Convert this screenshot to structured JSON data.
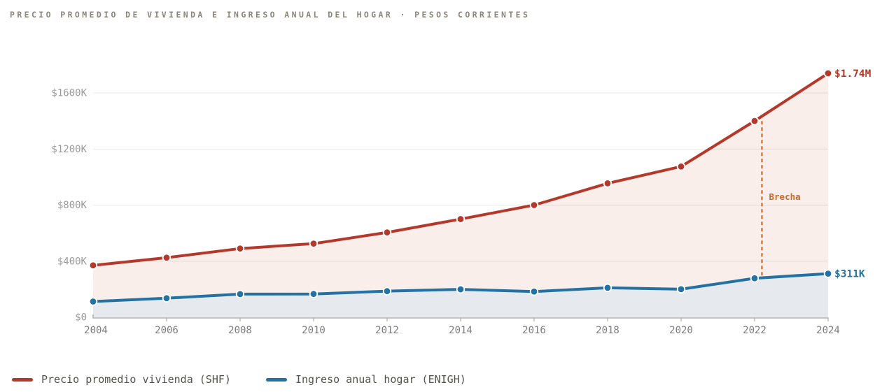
{
  "title": "PRECIO PROMEDIO DE VIVIENDA E INGRESO ANUAL DEL HOGAR · PESOS CORRIENTES",
  "colors": {
    "shf_red": "#b5392b",
    "enigh_blue": "#2471a4",
    "shf_area_fill": "#f9eeea",
    "enigh_area_fill": "#e6e9ed",
    "annotation_orange": "#cb6a2f",
    "grid": "rgba(100,85,75,0.14)",
    "axis": "#b3afaa",
    "x_tick_text": "#7d7d7d",
    "y_tick_text": "#9b9b9b",
    "title_text": "#8b8579",
    "legend_text": "#55524c"
  },
  "chart_data": {
    "type": "line",
    "x": [
      2004,
      2006,
      2008,
      2010,
      2012,
      2014,
      2016,
      2018,
      2020,
      2022,
      2024
    ],
    "x_tick_labels": [
      "2004",
      "2006",
      "2008",
      "2010",
      "2012",
      "2014",
      "2016",
      "2018",
      "2020",
      "2022",
      "2024"
    ],
    "series": [
      {
        "name": "Precio promedio vivienda (SHF)",
        "color": "#b5392b",
        "area_fill": "#f9eeea",
        "values": [
          370000,
          425000,
          490000,
          525000,
          605000,
          700000,
          800000,
          955000,
          1075000,
          1400000,
          1740000
        ],
        "end_label": "$1.74M"
      },
      {
        "name": "Ingreso anual hogar (ENIGH)",
        "color": "#2471a4",
        "area_fill": "#e6e9ed",
        "values": [
          112000,
          136000,
          165000,
          166000,
          186000,
          199000,
          183000,
          210000,
          200000,
          278000,
          311000
        ],
        "end_label": "$311K"
      }
    ],
    "y_ticks": [
      {
        "value": 0,
        "label": "$0"
      },
      {
        "value": 400000,
        "label": "$400K"
      },
      {
        "value": 800000,
        "label": "$800K"
      },
      {
        "value": 1200000,
        "label": "$1200K"
      },
      {
        "value": 1600000,
        "label": "$1600K"
      }
    ],
    "ylim": [
      0,
      1740000
    ],
    "xlim": [
      2004,
      2024
    ],
    "grid": true,
    "annotation": {
      "label": "Brecha",
      "x_year": 2022.2,
      "color": "#cb6a2f"
    },
    "legend_position": "bottom-left"
  },
  "legend": [
    {
      "label": "Precio promedio vivienda (SHF)",
      "color": "#b5392b"
    },
    {
      "label": "Ingreso anual hogar (ENIGH)",
      "color": "#2471a4"
    }
  ]
}
